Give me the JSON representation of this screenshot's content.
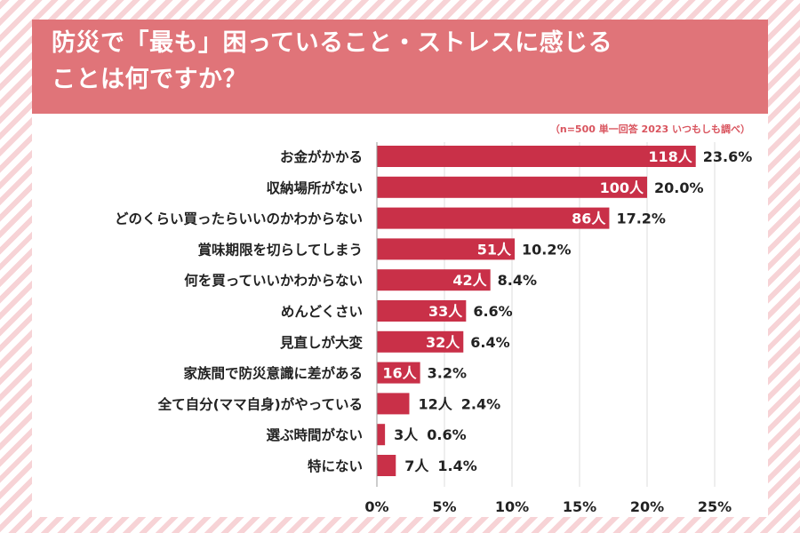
{
  "title": {
    "line1": "防災で「最も」困っていること・ストレスに感じる",
    "line2": "ことは何ですか？"
  },
  "source": "（n=500 単一回答 2023 いつもしも調べ）",
  "colors": {
    "bar": "#c93048",
    "title_bg": "#e07479",
    "source": "#d9545e",
    "stripe": "#f7d3d6"
  },
  "chart_data": {
    "type": "bar",
    "orientation": "horizontal",
    "title": "防災で「最も」困っていること・ストレスに感じることは何ですか？",
    "xlim": [
      0,
      25
    ],
    "x_ticks": [
      "0%",
      "5%",
      "10%",
      "15%",
      "20%",
      "25%"
    ],
    "x_tick_values": [
      0,
      5,
      10,
      15,
      20,
      25
    ],
    "grid": true,
    "categories": [
      "お金がかかる",
      "収納場所がない",
      "どのくらい買ったらいいのかわからない",
      "賞味期限を切らしてしまう",
      "何を買っていいかわからない",
      "めんどくさい",
      "見直しが大変",
      "家族間で防災意識に差がある",
      "全て自分(ママ自身)がやっている",
      "選ぶ時間がない",
      "特にない"
    ],
    "values": [
      23.6,
      20.0,
      17.2,
      10.2,
      8.4,
      6.6,
      6.4,
      3.2,
      2.4,
      0.6,
      1.4
    ],
    "count_labels": [
      "118人",
      "100人",
      "86人",
      "51人",
      "42人",
      "33人",
      "32人",
      "16人",
      "12人",
      "3人",
      "7人"
    ],
    "percent_labels": [
      "23.6%",
      "20.0%",
      "17.2%",
      "10.2%",
      "8.4%",
      "6.6%",
      "6.4%",
      "3.2%",
      "2.4%",
      "0.6%",
      "1.4%"
    ],
    "counts_inside_bar": [
      true,
      true,
      true,
      true,
      true,
      true,
      true,
      true,
      false,
      false,
      false
    ]
  }
}
